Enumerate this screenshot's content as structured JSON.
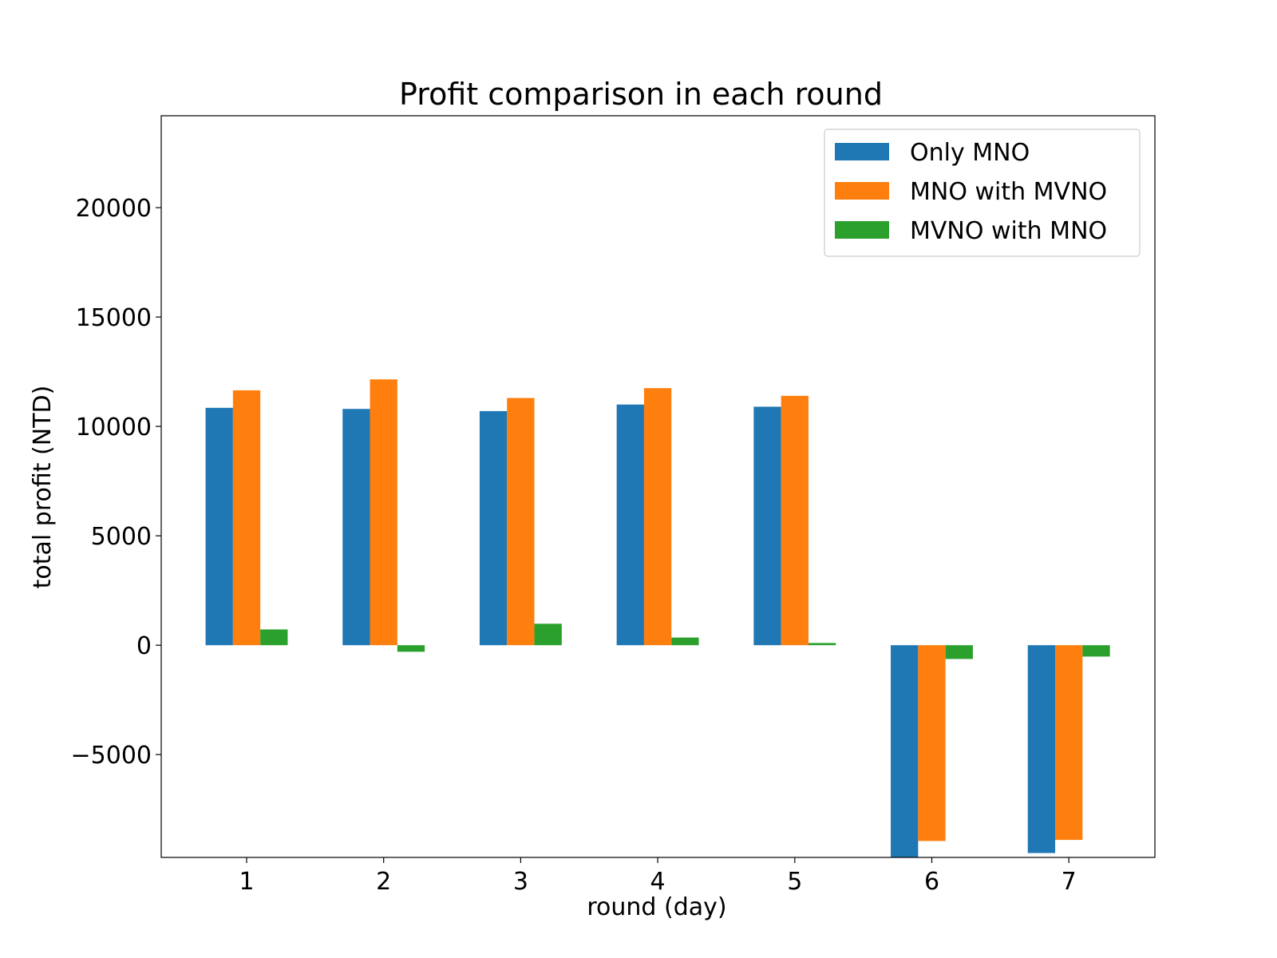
{
  "chart_data": {
    "type": "bar",
    "title": "Profit comparison in each round",
    "xlabel": "round (day)",
    "ylabel": "total profit (NTD)",
    "categories": [
      "1",
      "2",
      "3",
      "4",
      "5",
      "6",
      "7"
    ],
    "series": [
      {
        "name": "Only MNO",
        "color": "#1f77b4",
        "values": [
          10850,
          10800,
          10700,
          11000,
          10900,
          -9700,
          -9500
        ]
      },
      {
        "name": "MNO with MVNO",
        "color": "#ff7f0e",
        "values": [
          11650,
          12150,
          11300,
          11750,
          11400,
          -8950,
          -8900
        ]
      },
      {
        "name": "MVNO with MNO",
        "color": "#2ca02c",
        "values": [
          720,
          -300,
          980,
          350,
          100,
          -630,
          -520
        ]
      }
    ],
    "yticks": [
      -5000,
      0,
      5000,
      10000,
      15000,
      20000
    ],
    "ytick_labels": [
      "−5000",
      "0",
      "5000",
      "10000",
      "15000",
      "20000"
    ],
    "ylim": [
      -9700,
      24200
    ],
    "grid": false,
    "legend_position": "top-right"
  }
}
